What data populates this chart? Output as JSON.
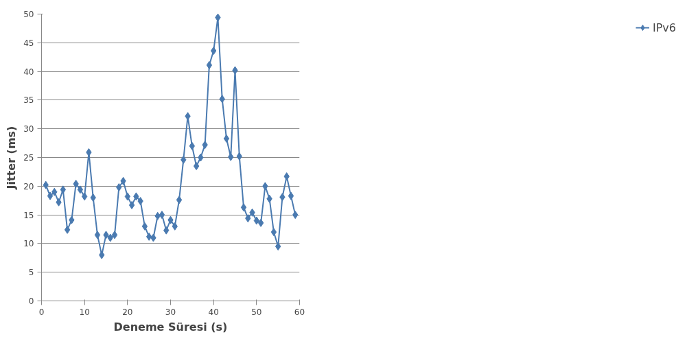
{
  "chart_data": {
    "type": "line",
    "xlabel": "Deneme Süresi (s)",
    "ylabel": "Jitter (ms)",
    "x": [
      1,
      2,
      3,
      4,
      5,
      6,
      7,
      8,
      9,
      10,
      11,
      12,
      13,
      14,
      15,
      16,
      17,
      18,
      19,
      20,
      21,
      22,
      23,
      24,
      25,
      26,
      27,
      28,
      29,
      30,
      31,
      32,
      33,
      34,
      35,
      36,
      37,
      38,
      39,
      40,
      41,
      42,
      43,
      44,
      45,
      46,
      47,
      48,
      49,
      50,
      51,
      52,
      53,
      54,
      55,
      56,
      57,
      58,
      59
    ],
    "series": [
      {
        "name": "IPv6",
        "color": "#4a7ab0",
        "values": [
          20.2,
          18.3,
          19,
          17.2,
          19.4,
          12.4,
          14.1,
          20.4,
          19.4,
          18.2,
          25.9,
          18,
          11.5,
          8,
          11.5,
          11,
          11.5,
          19.8,
          20.9,
          18.2,
          16.7,
          18.2,
          17.4,
          13,
          11.2,
          11,
          14.8,
          15,
          12.3,
          14.1,
          13,
          17.6,
          24.6,
          32.2,
          27,
          23.5,
          25,
          27.2,
          41.1,
          43.6,
          49.4,
          35.2,
          28.3,
          25.1,
          40.2,
          25.2,
          16.3,
          14.4,
          15.4,
          14,
          13.6,
          20,
          17.8,
          12,
          9.5,
          18.1,
          21.7,
          18.3,
          15
        ]
      }
    ],
    "xlim": [
      0,
      60
    ],
    "xticks": [
      0,
      10,
      20,
      30,
      40,
      50,
      60
    ],
    "ylim": [
      0,
      50
    ],
    "yticks": [
      0,
      5,
      10,
      15,
      20,
      25,
      30,
      35,
      40,
      45,
      50
    ],
    "grid": "y",
    "legend": "right",
    "marker": "diamond",
    "line_style": "solid"
  }
}
